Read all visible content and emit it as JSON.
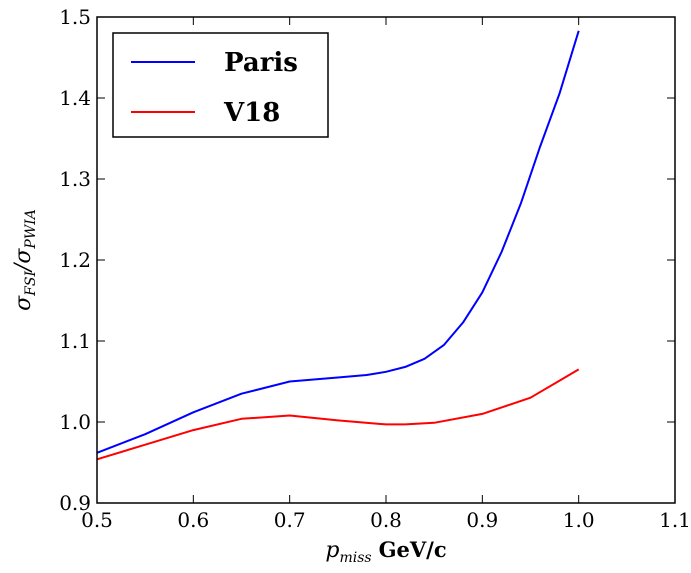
{
  "chart_data": {
    "type": "line",
    "title": "",
    "xlabel": {
      "var": "p",
      "sub": "miss",
      "unit": "GeV/c"
    },
    "ylabel": {
      "num": "σ",
      "num_sub": "FSI",
      "sep": "/",
      "den": "σ",
      "den_sub": "PWIA"
    },
    "xlim": [
      0.5,
      1.1
    ],
    "ylim": [
      0.9,
      1.5
    ],
    "xticks": [
      "0.5",
      "0.6",
      "0.7",
      "0.8",
      "0.9",
      "1.0",
      "1.1"
    ],
    "yticks": [
      "0.9",
      "1.0",
      "1.1",
      "1.2",
      "1.3",
      "1.4",
      "1.5"
    ],
    "grid": false,
    "legend_position": "top-left",
    "series": [
      {
        "name": "Paris",
        "color": "#0000ff",
        "x": [
          0.5,
          0.55,
          0.6,
          0.65,
          0.7,
          0.75,
          0.78,
          0.8,
          0.82,
          0.84,
          0.86,
          0.88,
          0.9,
          0.92,
          0.94,
          0.96,
          0.98,
          1.0
        ],
        "y": [
          0.962,
          0.985,
          1.012,
          1.035,
          1.05,
          1.055,
          1.058,
          1.062,
          1.068,
          1.078,
          1.095,
          1.123,
          1.16,
          1.21,
          1.27,
          1.34,
          1.405,
          1.483
        ]
      },
      {
        "name": "V18",
        "color": "#ff0000",
        "x": [
          0.5,
          0.55,
          0.6,
          0.65,
          0.7,
          0.75,
          0.8,
          0.82,
          0.85,
          0.9,
          0.95,
          1.0
        ],
        "y": [
          0.954,
          0.972,
          0.99,
          1.004,
          1.008,
          1.002,
          0.997,
          0.997,
          0.999,
          1.01,
          1.03,
          1.065
        ]
      }
    ]
  }
}
